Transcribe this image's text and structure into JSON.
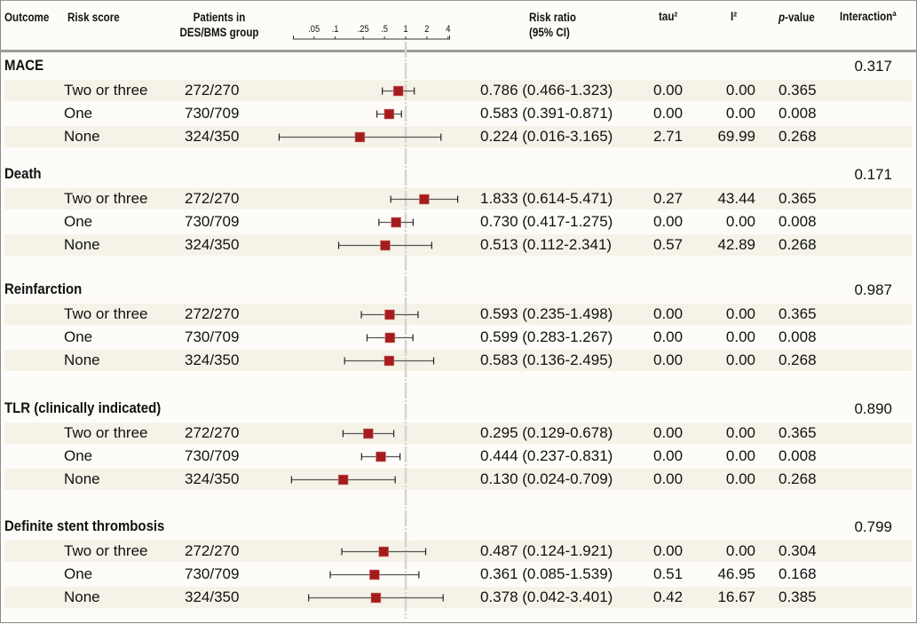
{
  "header": {
    "outcome": "Outcome",
    "risk_score": "Risk score",
    "patients_line1": "Patients in",
    "patients_line2": "DES/BMS group",
    "rr_line1": "Risk ratio",
    "rr_line2": "(95% CI)",
    "tau2": "tau²",
    "i2": "I²",
    "pvalue_p": "p",
    "pvalue_rest": "-value",
    "interaction": "Interactionª"
  },
  "chart_data": {
    "type": "forest",
    "xscale": "log",
    "xlim": [
      0.016,
      5.5
    ],
    "reference_line": 1,
    "ticks": [
      ".05",
      ".1",
      ".25",
      ".5",
      "1",
      "2",
      "4"
    ],
    "tick_values": [
      0.05,
      0.1,
      0.25,
      0.5,
      1,
      2,
      4
    ],
    "marker_color": "#a51c1c",
    "groups": [
      {
        "outcome": "MACE",
        "interaction": "0.317",
        "rows": [
          {
            "risk_score": "Two or three",
            "patients": "272/270",
            "rr": 0.786,
            "lo": 0.466,
            "hi": 1.323,
            "rr_text": "0.786 (0.466-1.323)",
            "tau2": "0.00",
            "i2": "0.00",
            "p": "0.365"
          },
          {
            "risk_score": "One",
            "patients": "730/709",
            "rr": 0.583,
            "lo": 0.391,
            "hi": 0.871,
            "rr_text": "0.583 (0.391-0.871)",
            "tau2": "0.00",
            "i2": "0.00",
            "p": "0.008"
          },
          {
            "risk_score": "None",
            "patients": "324/350",
            "rr": 0.224,
            "lo": 0.016,
            "hi": 3.165,
            "rr_text": "0.224 (0.016-3.165)",
            "tau2": "2.71",
            "i2": "69.99",
            "p": "0.268"
          }
        ]
      },
      {
        "outcome": "Death",
        "interaction": "0.171",
        "rows": [
          {
            "risk_score": "Two or three",
            "patients": "272/270",
            "rr": 1.833,
            "lo": 0.614,
            "hi": 5.471,
            "rr_text": "1.833 (0.614-5.471)",
            "tau2": "0.27",
            "i2": "43.44",
            "p": "0.365"
          },
          {
            "risk_score": "One",
            "patients": "730/709",
            "rr": 0.73,
            "lo": 0.417,
            "hi": 1.275,
            "rr_text": "0.730 (0.417-1.275)",
            "tau2": "0.00",
            "i2": "0.00",
            "p": "0.008"
          },
          {
            "risk_score": "None",
            "patients": "324/350",
            "rr": 0.513,
            "lo": 0.112,
            "hi": 2.341,
            "rr_text": "0.513 (0.112-2.341)",
            "tau2": "0.57",
            "i2": "42.89",
            "p": "0.268"
          }
        ]
      },
      {
        "outcome": "Reinfarction",
        "interaction": "0.987",
        "rows": [
          {
            "risk_score": "Two or three",
            "patients": "272/270",
            "rr": 0.593,
            "lo": 0.235,
            "hi": 1.498,
            "rr_text": "0.593 (0.235-1.498)",
            "tau2": "0.00",
            "i2": "0.00",
            "p": "0.365"
          },
          {
            "risk_score": "One",
            "patients": "730/709",
            "rr": 0.599,
            "lo": 0.283,
            "hi": 1.267,
            "rr_text": "0.599 (0.283-1.267)",
            "tau2": "0.00",
            "i2": "0.00",
            "p": "0.008"
          },
          {
            "risk_score": "None",
            "patients": "324/350",
            "rr": 0.583,
            "lo": 0.136,
            "hi": 2.495,
            "rr_text": "0.583 (0.136-2.495)",
            "tau2": "0.00",
            "i2": "0.00",
            "p": "0.268"
          }
        ]
      },
      {
        "outcome": "TLR (clinically indicated)",
        "interaction": "0.890",
        "rows": [
          {
            "risk_score": "Two or three",
            "patients": "272/270",
            "rr": 0.295,
            "lo": 0.129,
            "hi": 0.678,
            "rr_text": "0.295 (0.129-0.678)",
            "tau2": "0.00",
            "i2": "0.00",
            "p": "0.365"
          },
          {
            "risk_score": "One",
            "patients": "730/709",
            "rr": 0.444,
            "lo": 0.237,
            "hi": 0.831,
            "rr_text": "0.444 (0.237-0.831)",
            "tau2": "0.00",
            "i2": "0.00",
            "p": "0.008"
          },
          {
            "risk_score": "None",
            "patients": "324/350",
            "rr": 0.13,
            "lo": 0.024,
            "hi": 0.709,
            "rr_text": "0.130 (0.024-0.709)",
            "tau2": "0.00",
            "i2": "0.00",
            "p": "0.268"
          }
        ]
      },
      {
        "outcome": "Definite stent thrombosis",
        "interaction": "0.799",
        "rows": [
          {
            "risk_score": "Two or three",
            "patients": "272/270",
            "rr": 0.487,
            "lo": 0.124,
            "hi": 1.921,
            "rr_text": "0.487 (0.124-1.921)",
            "tau2": "0.00",
            "i2": "0.00",
            "p": "0.304"
          },
          {
            "risk_score": "One",
            "patients": "730/709",
            "rr": 0.361,
            "lo": 0.085,
            "hi": 1.539,
            "rr_text": "0.361 (0.085-1.539)",
            "tau2": "0.51",
            "i2": "46.95",
            "p": "0.168"
          },
          {
            "risk_score": "None",
            "patients": "324/350",
            "rr": 0.378,
            "lo": 0.042,
            "hi": 3.401,
            "rr_text": "0.378 (0.042-3.401)",
            "tau2": "0.42",
            "i2": "16.67",
            "p": "0.385"
          }
        ]
      }
    ]
  }
}
